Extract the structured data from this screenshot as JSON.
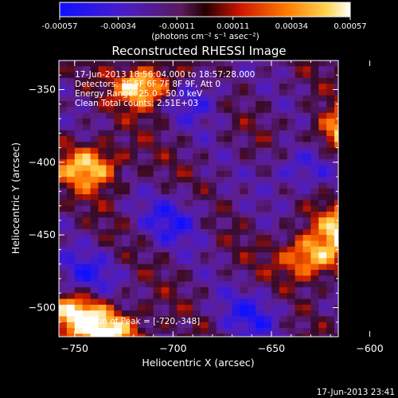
{
  "colorbar": {
    "ticks": [
      "-0.00057",
      "-0.00034",
      "-0.00011",
      "0.00011",
      "0.00034",
      "0.00057"
    ],
    "label": "(photons cm⁻² s⁻¹ asec⁻²)",
    "range": [
      -0.00057,
      0.00057
    ]
  },
  "chart_data": {
    "type": "heatmap",
    "title": "Reconstructed RHESSI Image",
    "xlabel": "Heliocentric X (arcsec)",
    "ylabel": "Heliocentric Y (arcsec)",
    "xlim": [
      -758,
      -616
    ],
    "ylim": [
      -520,
      -330
    ],
    "xticks": [
      -750,
      -700,
      -650,
      -600
    ],
    "yticks": [
      -350,
      -400,
      -450,
      -500
    ],
    "xtick_labels": [
      "−750",
      "−700",
      "−650",
      "−600"
    ],
    "ytick_labels": [
      "−350",
      "−400",
      "−450",
      "−500"
    ],
    "annotations": [
      "17-Jun-2013 18:56:04.000 to 18:57:28.000",
      "Detectors: 3F 5F 6F 7F 8F 9F, Att 0",
      "Energy Range: 25.0 - 50.0 keV",
      "Clean    Total counts: 2.51E+03"
    ],
    "peak_label": "Position of Peak = [-720,-348]",
    "peak": [
      -720,
      -348
    ],
    "bright_sources": [
      {
        "x": -712,
        "y": -348
      },
      {
        "x": -742,
        "y": -403
      },
      {
        "x": -612,
        "y": -380
      },
      {
        "x": -610,
        "y": -445
      },
      {
        "x": -630,
        "y": -465
      },
      {
        "x": -748,
        "y": -505
      },
      {
        "x": -730,
        "y": -518
      }
    ],
    "dim_regions": [
      {
        "x": -690,
        "y": -355
      },
      {
        "x": -635,
        "y": -405
      },
      {
        "x": -745,
        "y": -478
      },
      {
        "x": -660,
        "y": -505
      },
      {
        "x": -700,
        "y": -440
      }
    ],
    "colormap": "blue-purple-red-orange-yellow-white"
  },
  "footer": {
    "timestamp": "17-Jun-2013 23:41"
  }
}
